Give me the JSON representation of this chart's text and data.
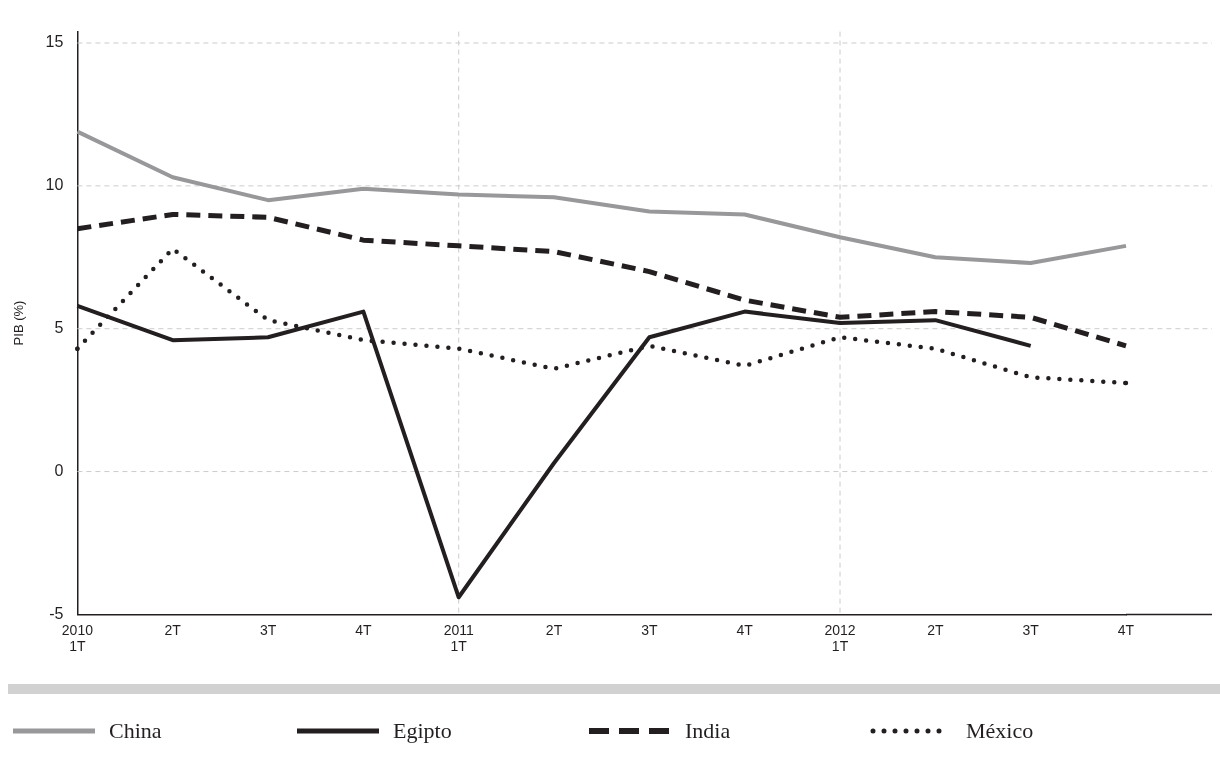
{
  "chart_data": {
    "type": "line",
    "ylabel": "PIB (%)",
    "categories": [
      "2010\n1T",
      "2T",
      "3T",
      "4T",
      "2011\n1T",
      "2T",
      "3T",
      "4T",
      "2012\n1T",
      "2T",
      "3T",
      "4T"
    ],
    "series": [
      {
        "name": "China",
        "color": "#98989b",
        "line_style": "solid",
        "values": [
          11.9,
          10.3,
          9.5,
          9.9,
          9.7,
          9.6,
          9.1,
          9.0,
          8.2,
          7.5,
          7.3,
          7.9
        ]
      },
      {
        "name": "Egipto",
        "color": "#231f20",
        "line_style": "solid",
        "values": [
          5.8,
          4.6,
          4.7,
          5.6,
          -4.4,
          0.3,
          4.7,
          5.6,
          5.2,
          5.3,
          4.4,
          null
        ]
      },
      {
        "name": "India",
        "color": "#231f20",
        "line_style": "dashed",
        "values": [
          8.5,
          9.0,
          8.9,
          8.1,
          7.9,
          7.7,
          7.0,
          6.0,
          5.4,
          5.6,
          5.4,
          4.4
        ]
      },
      {
        "name": "México",
        "color": "#231f20",
        "line_style": "dotted",
        "values": [
          4.3,
          7.8,
          5.3,
          4.6,
          4.3,
          3.6,
          4.4,
          3.7,
          4.7,
          4.3,
          3.3,
          3.1
        ]
      }
    ],
    "ylim": [
      -5,
      15.4
    ],
    "yticks": [
      -5,
      0,
      5,
      10,
      15
    ],
    "grid": "y",
    "legend": "bottom",
    "marker": "none",
    "ref_lines": [
      {
        "axis": "x",
        "value": "2011\n1T",
        "color": "#cccccc",
        "line_style": "dashed"
      },
      {
        "axis": "x",
        "value": "2012\n1T",
        "color": "#cccccc",
        "line_style": "dashed"
      }
    ]
  }
}
